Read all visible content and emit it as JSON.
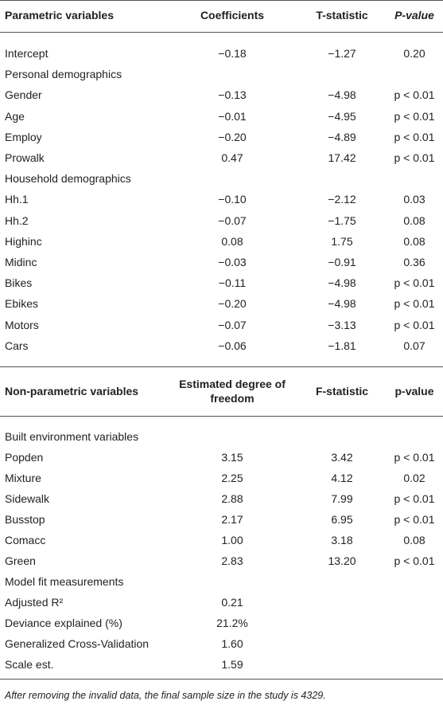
{
  "table": {
    "sections": [
      {
        "header": [
          "Parametric variables",
          "Coefficients",
          "T-statistic",
          "P-value"
        ],
        "rows": [
          [
            "Intercept",
            "−0.18",
            "−1.27",
            "0.20"
          ],
          [
            "Personal demographics"
          ],
          [
            "Gender",
            "−0.13",
            "−4.98",
            "p < 0.01"
          ],
          [
            "Age",
            "−0.01",
            "−4.95",
            "p < 0.01"
          ],
          [
            "Employ",
            "−0.20",
            "−4.89",
            "p < 0.01"
          ],
          [
            "Prowalk",
            "0.47",
            "17.42",
            "p < 0.01"
          ],
          [
            "Household demographics"
          ],
          [
            "Hh.1",
            "−0.10",
            "−2.12",
            "0.03"
          ],
          [
            "Hh.2",
            "−0.07",
            "−1.75",
            "0.08"
          ],
          [
            "Highinc",
            "0.08",
            "1.75",
            "0.08"
          ],
          [
            "Midinc",
            "−0.03",
            "−0.91",
            "0.36"
          ],
          [
            "Bikes",
            "−0.11",
            "−4.98",
            "p < 0.01"
          ],
          [
            "Ebikes",
            "−0.20",
            "−4.98",
            "p < 0.01"
          ],
          [
            "Motors",
            "−0.07",
            "−3.13",
            "p < 0.01"
          ],
          [
            "Cars",
            "−0.06",
            "−1.81",
            "0.07"
          ]
        ]
      },
      {
        "header": [
          "Non-parametric variables",
          "Estimated degree of freedom",
          "F-statistic",
          "p-value"
        ],
        "rows": [
          [
            "Built environment variables"
          ],
          [
            "Popden",
            "3.15",
            "3.42",
            "p < 0.01"
          ],
          [
            "Mixture",
            "2.25",
            "4.12",
            "0.02"
          ],
          [
            "Sidewalk",
            "2.88",
            "7.99",
            "p < 0.01"
          ],
          [
            "Busstop",
            "2.17",
            "6.95",
            "p < 0.01"
          ],
          [
            "Comacc",
            "1.00",
            "3.18",
            "0.08"
          ],
          [
            "Green",
            "2.83",
            "13.20",
            "p < 0.01"
          ],
          [
            "Model fit measurements"
          ],
          [
            "Adjusted R²",
            "0.21"
          ],
          [
            "Deviance explained (%)",
            "21.2%"
          ],
          [
            "Generalized Cross-Validation",
            "1.60"
          ],
          [
            "Scale est.",
            "1.59"
          ]
        ]
      }
    ],
    "footnote": "After removing the invalid data, the final sample size in the study is 4329."
  }
}
